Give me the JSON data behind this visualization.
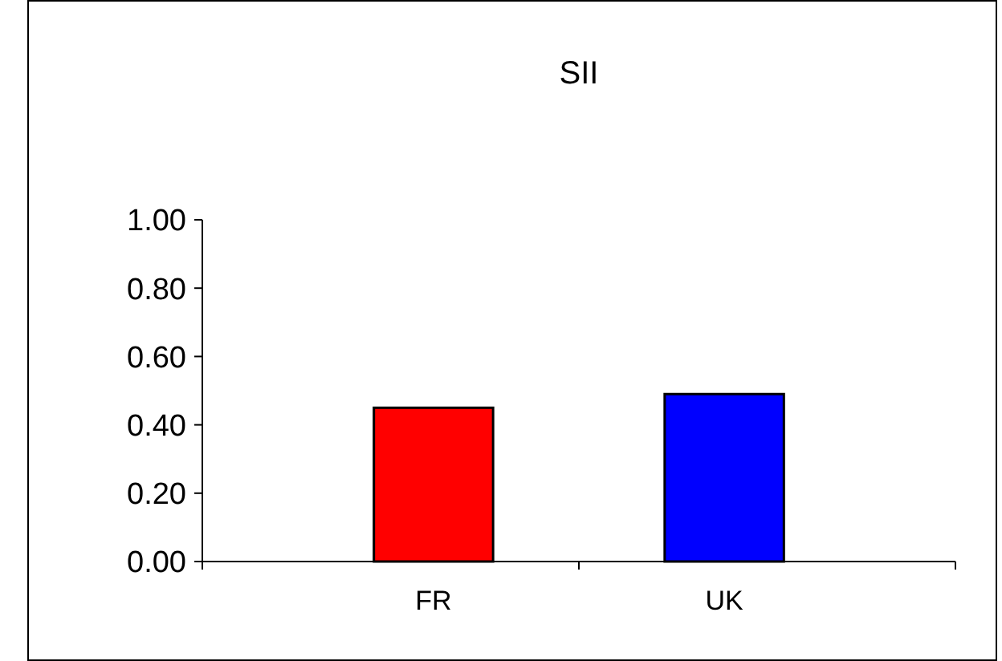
{
  "chart_data": {
    "type": "bar",
    "title": "SII",
    "categories": [
      "FR",
      "UK"
    ],
    "values": [
      0.45,
      0.49
    ],
    "colors": [
      "#ff0000",
      "#0000ff"
    ],
    "ylim": [
      0,
      1
    ],
    "yticks": [
      {
        "value": 0,
        "label": "0.00"
      },
      {
        "value": 0.2,
        "label": "0.20"
      },
      {
        "value": 0.4,
        "label": "0.40"
      },
      {
        "value": 0.6,
        "label": "0.60"
      },
      {
        "value": 0.8,
        "label": "0.80"
      },
      {
        "value": 1,
        "label": "1.00"
      }
    ],
    "grid": false
  }
}
